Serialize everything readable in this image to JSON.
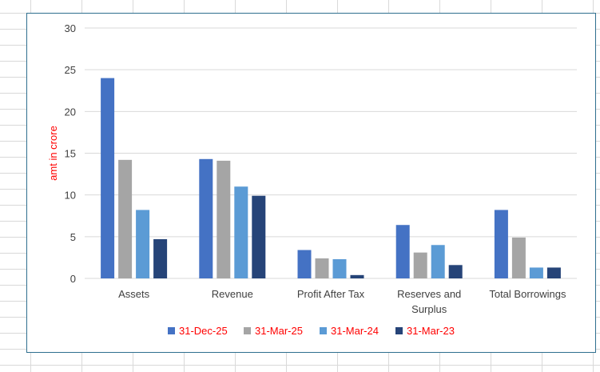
{
  "chart_data": {
    "type": "bar",
    "title": "",
    "xlabel": "",
    "ylabel": "amt in crore",
    "ylim": [
      0,
      30
    ],
    "yticks": [
      0,
      5,
      10,
      15,
      20,
      25,
      30
    ],
    "grid": true,
    "legend_position": "bottom",
    "categories": [
      [
        "Assets"
      ],
      [
        "Revenue"
      ],
      [
        "Profit After Tax"
      ],
      [
        "Reserves and",
        "Surplus"
      ],
      [
        "Total Borrowings"
      ]
    ],
    "series": [
      {
        "name": "31-Dec-25",
        "color": "#4472c4",
        "values": [
          24.0,
          14.3,
          3.4,
          6.4,
          8.2
        ]
      },
      {
        "name": "31-Mar-25",
        "color": "#a5a5a5",
        "values": [
          14.2,
          14.1,
          2.4,
          3.1,
          4.9
        ]
      },
      {
        "name": "31-Mar-24",
        "color": "#5b9bd5",
        "values": [
          8.2,
          11.0,
          2.3,
          4.0,
          1.3
        ]
      },
      {
        "name": "31-Mar-23",
        "color": "#264478",
        "values": [
          4.7,
          9.9,
          0.4,
          1.6,
          1.3
        ]
      }
    ]
  }
}
